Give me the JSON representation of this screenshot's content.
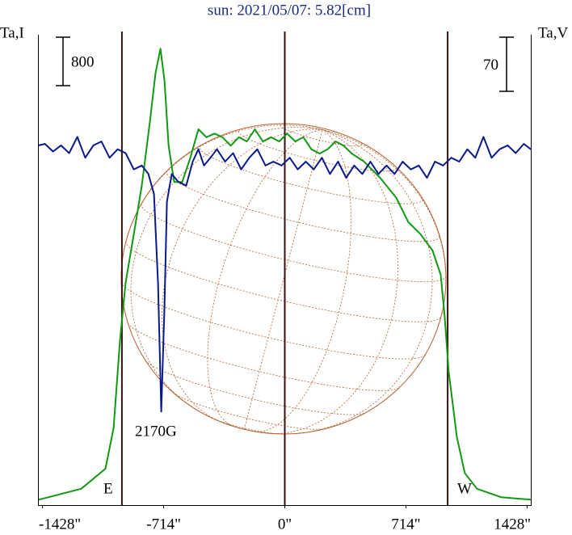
{
  "chart_data": {
    "type": "line",
    "title": "sun: 2021/05/07: 5.82[cm]",
    "ylabel": "Ta,I",
    "y2label": "Ta,V",
    "xlim": [
      -1450,
      1450
    ],
    "xticks": [
      {
        "value": -1428,
        "label": "-1428\""
      },
      {
        "value": -714,
        "label": "-714\""
      },
      {
        "value": 0,
        "label": "0\""
      },
      {
        "value": 714,
        "label": "714\""
      },
      {
        "value": 1428,
        "label": "1428\""
      }
    ],
    "ylim": [
      0,
      7760
    ],
    "y2lim": [
      -440,
      168
    ],
    "scale_bars": [
      {
        "label": "800",
        "value": 800,
        "axis": "y"
      },
      {
        "label": "70",
        "value": 70,
        "axis": "y2"
      }
    ],
    "vlines": [
      -960,
      0,
      960
    ],
    "vline_color": "#3a1010",
    "disk_color": "#b5602e",
    "limb_labels": [
      "E",
      "W"
    ],
    "annotations": [
      {
        "text": "2170G"
      }
    ],
    "series": [
      {
        "color": "#119911",
        "axis": "y",
        "x": [
          -1450,
          -1200,
          -1057,
          -1009,
          -971,
          -938,
          -890,
          -843,
          -795,
          -762,
          -733,
          -709,
          -685,
          -652,
          -605,
          -557,
          -509,
          -462,
          -414,
          -367,
          -319,
          -271,
          -224,
          -176,
          -129,
          -81,
          -33,
          14,
          62,
          109,
          157,
          205,
          252,
          300,
          347,
          395,
          466,
          562,
          657,
          728,
          800,
          871,
          919,
          942,
          966,
          1014,
          1061,
          1133,
          1276,
          1450
        ],
        "values": [
          90,
          270,
          600,
          1270,
          2730,
          3670,
          4470,
          5270,
          6330,
          7130,
          7530,
          7000,
          5930,
          5330,
          5330,
          5730,
          6200,
          6070,
          6130,
          6070,
          5930,
          6070,
          6000,
          6200,
          6000,
          6070,
          6000,
          6130,
          6000,
          6070,
          5870,
          5800,
          5870,
          6000,
          5930,
          5800,
          5670,
          5400,
          5070,
          4670,
          4470,
          4200,
          3800,
          3130,
          2200,
          1130,
          530,
          270,
          130,
          90
        ]
      },
      {
        "color": "#0a1a8a",
        "axis": "y2",
        "x": [
          -1450,
          -1414,
          -1366,
          -1319,
          -1271,
          -1223,
          -1176,
          -1128,
          -1081,
          -1033,
          -985,
          -938,
          -890,
          -843,
          -804,
          -771,
          -747,
          -728,
          -709,
          -695,
          -666,
          -628,
          -581,
          -543,
          -509,
          -476,
          -438,
          -400,
          -352,
          -305,
          -257,
          -209,
          -162,
          -114,
          -67,
          -19,
          29,
          76,
          124,
          171,
          219,
          266,
          314,
          362,
          409,
          457,
          505,
          552,
          600,
          647,
          695,
          743,
          790,
          838,
          885,
          933,
          981,
          1028,
          1076,
          1123,
          1171,
          1219,
          1266,
          1314,
          1361,
          1409,
          1450
        ],
        "values": [
          25,
          27,
          17,
          25,
          15,
          36,
          9,
          25,
          30,
          9,
          20,
          15,
          -6,
          -1,
          -12,
          -38,
          -153,
          -319,
          -183,
          -48,
          -12,
          -22,
          -27,
          4,
          20,
          -1,
          9,
          20,
          4,
          15,
          -6,
          9,
          20,
          -1,
          4,
          -1,
          9,
          -6,
          4,
          -6,
          9,
          -12,
          4,
          -17,
          -1,
          -12,
          4,
          -12,
          -1,
          -12,
          4,
          -6,
          -1,
          -17,
          4,
          -1,
          9,
          4,
          20,
          9,
          36,
          9,
          20,
          25,
          15,
          27,
          20
        ]
      }
    ]
  }
}
